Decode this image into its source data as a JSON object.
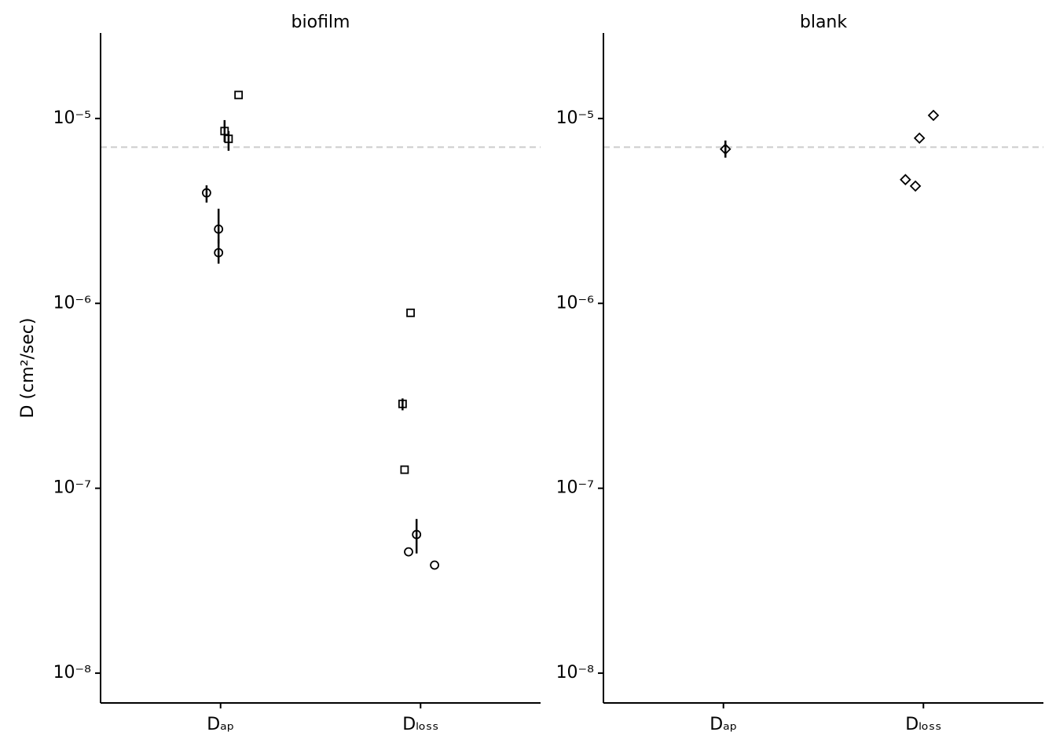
{
  "chart_data": [
    {
      "type": "scatter",
      "title": "biofilm",
      "ylabel": "D (cm²/sec)",
      "log_y": true,
      "grid": false,
      "xlim": [
        0.4,
        2.6
      ],
      "xticks": [
        {
          "value": 1,
          "label": "Dₐₚ"
        },
        {
          "value": 2,
          "label": "Dₗₒₛₛ"
        }
      ],
      "ylim": [
        6.9e-09,
        2.9e-05
      ],
      "yticks": [
        {
          "value": 1e-08,
          "label": "10⁻⁸"
        },
        {
          "value": 1e-07,
          "label": "10⁻⁷"
        },
        {
          "value": 1e-06,
          "label": "10⁻⁶"
        },
        {
          "value": 1e-05,
          "label": "10⁻⁵"
        }
      ],
      "hline": 7e-06,
      "hline_color": "#cccccc",
      "series": [
        {
          "marker": "square",
          "color": "#000000",
          "x": [
            1.09,
            1.02,
            1.04,
            1.95,
            1.91,
            1.92
          ],
          "values": [
            1.34e-05,
            8.55e-06,
            7.76e-06,
            8.89e-07,
            2.86e-07,
            1.26e-07
          ],
          "err_low": [
            null,
            7.46e-06,
            6.69e-06,
            null,
            2.64e-07,
            null
          ],
          "err_high": [
            null,
            9.8e-06,
            8.55e-06,
            null,
            3.06e-07,
            null
          ]
        },
        {
          "marker": "circle",
          "color": "#000000",
          "x": [
            0.93,
            0.99,
            0.99,
            1.98,
            1.94,
            2.07
          ],
          "values": [
            3.96e-06,
            2.52e-06,
            1.88e-06,
            5.62e-08,
            4.53e-08,
            3.84e-08
          ],
          "err_low": [
            3.51e-06,
            2.11e-06,
            1.64e-06,
            4.44e-08,
            null,
            null
          ],
          "err_high": [
            4.35e-06,
            3.25e-06,
            2.22e-06,
            6.82e-08,
            null,
            null
          ]
        }
      ]
    },
    {
      "type": "scatter",
      "title": "blank",
      "log_y": true,
      "grid": false,
      "xlim": [
        0.4,
        2.6
      ],
      "xticks": [
        {
          "value": 1,
          "label": "Dₐₚ"
        },
        {
          "value": 2,
          "label": "Dₗₒₛₛ"
        }
      ],
      "ylim": [
        6.9e-09,
        2.9e-05
      ],
      "yticks": [
        {
          "value": 1e-08,
          "label": "10⁻⁸"
        },
        {
          "value": 1e-07,
          "label": "10⁻⁷"
        },
        {
          "value": 1e-06,
          "label": "10⁻⁶"
        },
        {
          "value": 1e-05,
          "label": "10⁻⁵"
        }
      ],
      "hline": 7e-06,
      "hline_color": "#cccccc",
      "series": [
        {
          "marker": "diamond",
          "color": "#000000",
          "x": [
            1.01,
            1.98,
            2.05,
            1.91,
            1.96
          ],
          "values": [
            6.83e-06,
            7.83e-06,
            1.04e-05,
            4.67e-06,
            4.31e-06
          ],
          "err_low": [
            6.14e-06,
            null,
            null,
            null,
            null
          ],
          "err_high": [
            7.6e-06,
            null,
            null,
            null,
            null
          ]
        }
      ]
    }
  ]
}
